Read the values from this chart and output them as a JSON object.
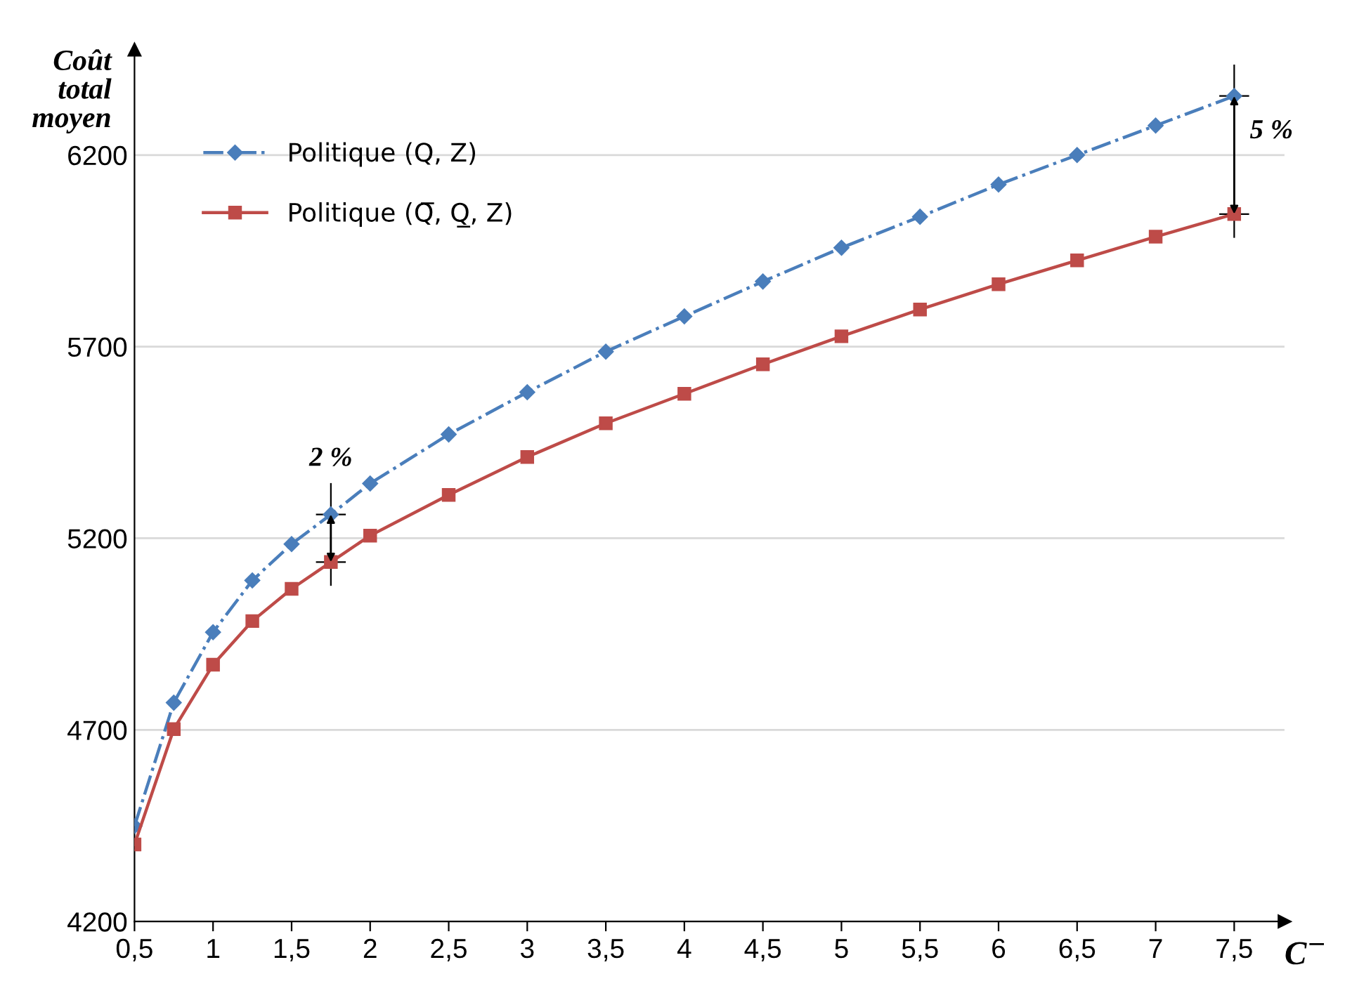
{
  "chart_data": {
    "type": "line",
    "ylabel": "Coût\ntotal\nmoyen",
    "xlabel": "C$^{−}$",
    "x": [
      0.5,
      0.75,
      1,
      1.25,
      1.5,
      1.75,
      2,
      2.5,
      3,
      3.5,
      4,
      4.5,
      5,
      5.5,
      6,
      6.5,
      7,
      7.5
    ],
    "series": [
      {
        "name": "Politique (Q, Z)",
        "color": "#4a7ebb",
        "marker": "diamond",
        "line_style": "dashdot",
        "values": [
          4449,
          4771,
          4955,
          5090,
          5185,
          5262,
          5343,
          5471,
          5581,
          5687,
          5779,
          5870,
          5958,
          6039,
          6123,
          6200,
          6277,
          6354
        ]
      },
      {
        "name": "Politique (Q̅, Q̲, Z)",
        "color": "#be4b48",
        "marker": "square",
        "line_style": "solid",
        "values": [
          4401,
          4702,
          4870,
          4984,
          5068,
          5138,
          5207,
          5313,
          5412,
          5500,
          5577,
          5654,
          5727,
          5797,
          5863,
          5925,
          5987,
          6046
        ]
      }
    ],
    "xlim": [
      0.5,
      7.82
    ],
    "ylim": [
      4200,
      6475
    ],
    "xticks": [
      {
        "value": 0.5,
        "label": "0,5"
      },
      1,
      {
        "value": 1.5,
        "label": "1,5"
      },
      2,
      {
        "value": 2.5,
        "label": "2,5"
      },
      3,
      {
        "value": 3.5,
        "label": "3,5"
      },
      4,
      {
        "value": 4.5,
        "label": "4,5"
      },
      5,
      {
        "value": 5.5,
        "label": "5,5"
      },
      6,
      {
        "value": 6.5,
        "label": "6,5"
      },
      7,
      {
        "value": 7.5,
        "label": "7,5"
      }
    ],
    "yticks": [
      4200,
      4700,
      5200,
      5700,
      6200
    ],
    "grid": "y",
    "legend": "top left",
    "annotations": [
      {
        "text": "2 %",
        "x": 1.75,
        "y": 5262
      },
      {
        "text": "5 %",
        "x": 7.5,
        "y": 6354
      }
    ]
  }
}
